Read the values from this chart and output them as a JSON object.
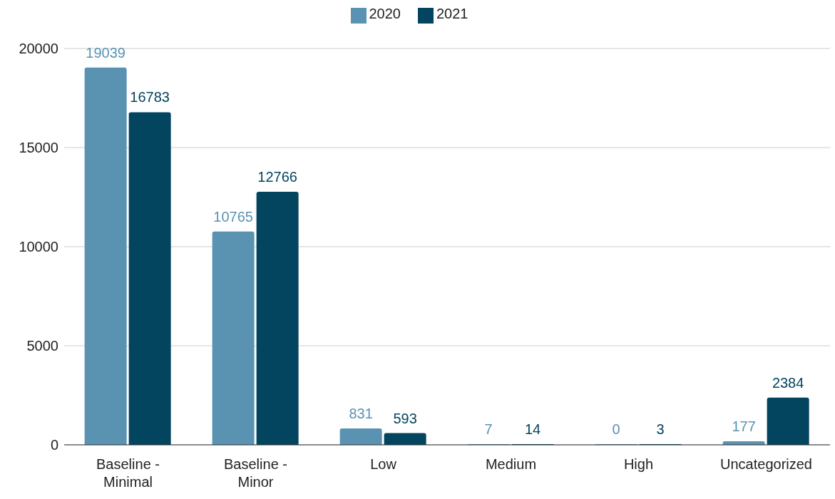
{
  "chart_data": {
    "type": "bar",
    "categories": [
      "Baseline - Minimal",
      "Baseline - Minor",
      "Low",
      "Medium",
      "High",
      "Uncategorized"
    ],
    "series": [
      {
        "name": "2020",
        "color": "#5a93b1",
        "values": [
          19039,
          10765,
          831,
          7,
          0,
          177
        ]
      },
      {
        "name": "2021",
        "color": "#03445e",
        "values": [
          16783,
          12766,
          593,
          14,
          3,
          2384
        ]
      }
    ],
    "ylim": [
      0,
      20000
    ],
    "yticks": [
      0,
      5000,
      10000,
      15000,
      20000
    ],
    "grid": "y",
    "legend": "top",
    "data_labels": true
  }
}
